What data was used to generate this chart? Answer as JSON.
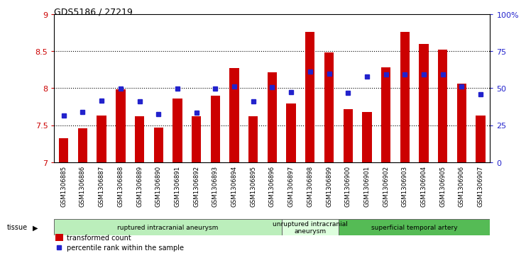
{
  "title": "GDS5186 / 27219",
  "samples": [
    "GSM1306885",
    "GSM1306886",
    "GSM1306887",
    "GSM1306888",
    "GSM1306889",
    "GSM1306890",
    "GSM1306891",
    "GSM1306892",
    "GSM1306893",
    "GSM1306894",
    "GSM1306895",
    "GSM1306896",
    "GSM1306897",
    "GSM1306898",
    "GSM1306899",
    "GSM1306900",
    "GSM1306901",
    "GSM1306902",
    "GSM1306903",
    "GSM1306904",
    "GSM1306905",
    "GSM1306906",
    "GSM1306907"
  ],
  "bar_values": [
    7.32,
    7.46,
    7.63,
    7.98,
    7.62,
    7.47,
    7.86,
    7.62,
    7.9,
    8.27,
    7.62,
    8.21,
    7.79,
    8.76,
    8.48,
    7.72,
    7.68,
    8.28,
    8.76,
    8.6,
    8.52,
    8.06,
    7.63
  ],
  "percentile_values": [
    7.63,
    7.68,
    7.83,
    7.99,
    7.82,
    7.65,
    7.99,
    7.67,
    7.99,
    8.02,
    7.82,
    8.01,
    7.95,
    8.22,
    8.2,
    7.94,
    8.16,
    8.19,
    8.19,
    8.19,
    8.19,
    8.02,
    7.92
  ],
  "ylim": [
    7.0,
    9.0
  ],
  "y2lim": [
    0,
    100
  ],
  "bar_color": "#cc0000",
  "dot_color": "#2222cc",
  "yticks_left": [
    7.0,
    7.5,
    8.0,
    8.5,
    9.0
  ],
  "ytick_labels_left": [
    "7",
    "7.5",
    "8",
    "8.5",
    "9"
  ],
  "yticks_right": [
    0,
    25,
    50,
    75,
    100
  ],
  "ytick_labels_right": [
    "0",
    "25",
    "50",
    "75",
    "100%"
  ],
  "hlines": [
    7.5,
    8.0,
    8.5
  ],
  "groups": [
    {
      "label": "ruptured intracranial aneurysm",
      "start": 0,
      "end": 12,
      "color": "#bbeebb"
    },
    {
      "label": "unruptured intracranial\naneurysm",
      "start": 12,
      "end": 15,
      "color": "#ddfedd"
    },
    {
      "label": "superficial temporal artery",
      "start": 15,
      "end": 23,
      "color": "#55bb55"
    }
  ],
  "tissue_label": "tissue",
  "legend_bar_label": "transformed count",
  "legend_dot_label": "percentile rank within the sample",
  "bar_width": 0.5
}
